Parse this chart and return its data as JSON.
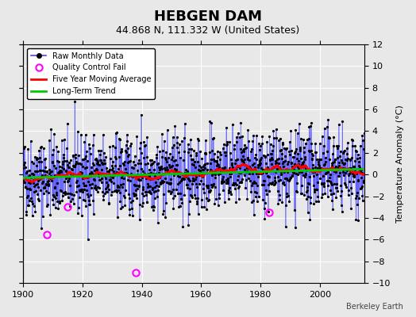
{
  "title": "HEBGEN DAM",
  "subtitle": "44.868 N, 111.332 W (United States)",
  "ylabel": "Temperature Anomaly (°C)",
  "credit": "Berkeley Earth",
  "xlim": [
    1900,
    2015
  ],
  "ylim": [
    -10,
    12
  ],
  "yticks": [
    -10,
    -8,
    -6,
    -4,
    -2,
    0,
    2,
    4,
    6,
    8,
    10,
    12
  ],
  "xticks": [
    1900,
    1920,
    1940,
    1960,
    1980,
    2000
  ],
  "raw_color": "#4444ff",
  "dot_color": "#000000",
  "ma_color": "#ff0000",
  "trend_color": "#00cc00",
  "qc_color": "#ff00ff",
  "background_color": "#e8e8e8",
  "grid_color": "#ffffff",
  "seed": 42,
  "n_years": 115,
  "start_year": 1900,
  "qc_years": [
    1908,
    1915,
    1938,
    1983
  ],
  "qc_values": [
    -5.5,
    -3.0,
    -9.0,
    -3.5
  ]
}
